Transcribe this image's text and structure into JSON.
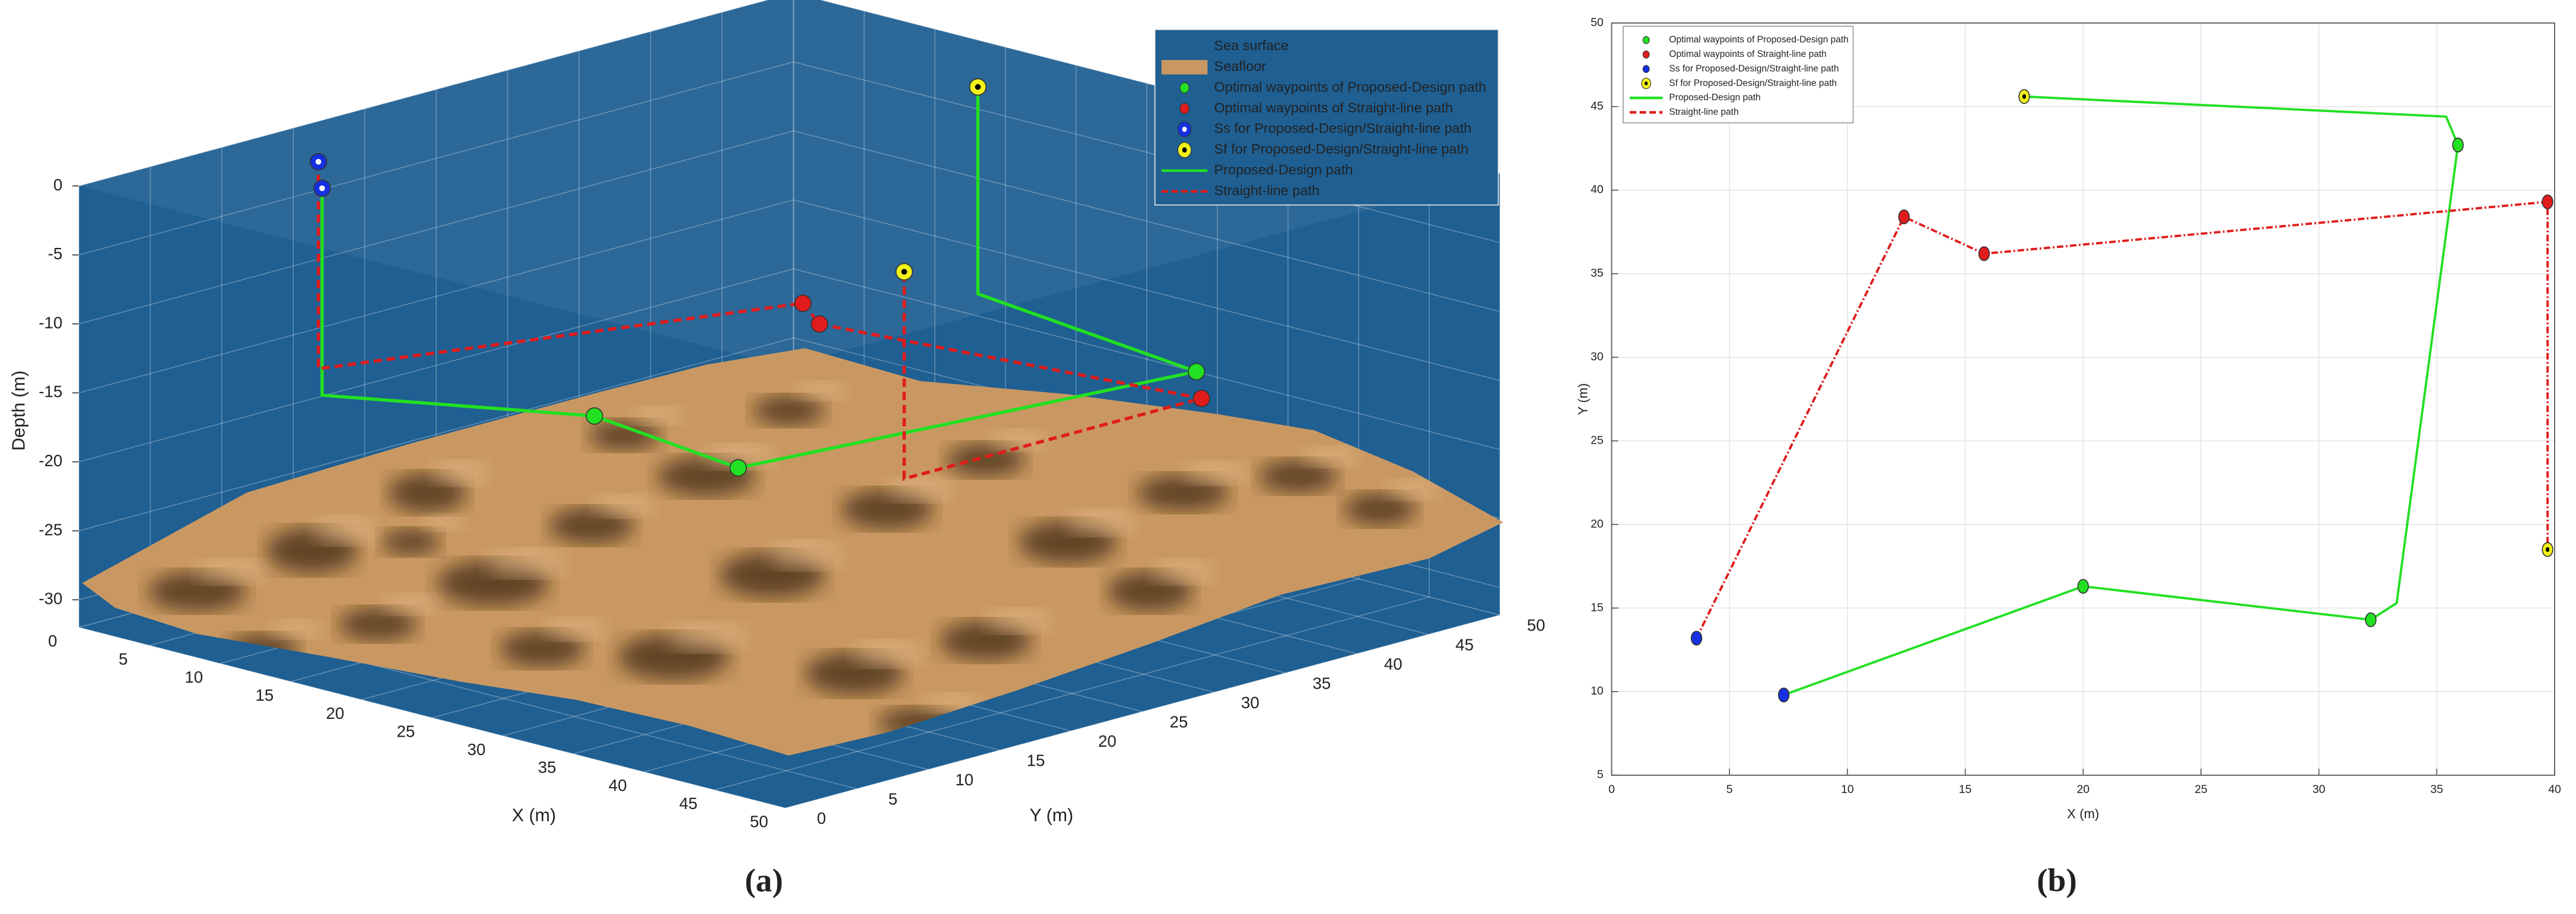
{
  "chart_data": [
    {
      "type": "line3d",
      "caption": "(a)",
      "xlabel": "X (m)",
      "ylabel": "Y (m)",
      "zlabel": "Depth (m)",
      "xlim": [
        0,
        50
      ],
      "ylim": [
        0,
        50
      ],
      "zlim": [
        -32,
        0
      ],
      "xticks": [
        0,
        5,
        10,
        15,
        20,
        25,
        30,
        35,
        40,
        45,
        50
      ],
      "yticks": [
        0,
        5,
        10,
        15,
        20,
        25,
        30,
        35,
        40,
        45,
        50
      ],
      "zticks": [
        0,
        -5,
        -10,
        -15,
        -20,
        -25,
        -30
      ],
      "grid": true,
      "legend": "upper right",
      "surfaces": [
        {
          "name": "Sea surface",
          "color": "#1f5f92"
        },
        {
          "name": "Seafloor",
          "color": "#c99862"
        }
      ],
      "series": [
        {
          "name": "Optimal waypoints of Proposed-Design path",
          "mode": "marker",
          "color": "#22e022",
          "x": [
            20,
            32.2,
            35.9
          ],
          "y": [
            16.3,
            14.3,
            42.7
          ],
          "z": [
            -16,
            -16,
            -16
          ]
        },
        {
          "name": "Optimal waypoints of Straight-line path",
          "mode": "marker",
          "color": "#e01c1c",
          "x": [
            12.4,
            15.8,
            39.7
          ],
          "y": [
            38.4,
            36.2,
            39.3
          ],
          "z": [
            -16,
            -16,
            -16
          ]
        },
        {
          "name": "Ss for Proposed-Design/Straight-line path",
          "mode": "marker",
          "color": "#1530e0",
          "marker_center": "#ffffff",
          "x": [
            7.3,
            3.6
          ],
          "y": [
            9.8,
            13.2
          ],
          "z": [
            -1,
            -1
          ]
        },
        {
          "name": "Sf for Proposed-Design/Straight-line path",
          "mode": "marker",
          "color": "#f2f21a",
          "marker_center": "#000000",
          "x": [
            17.5,
            39.7
          ],
          "y": [
            45.6,
            18.5
          ],
          "z": [
            -1,
            -1
          ]
        },
        {
          "name": "Proposed-Design path",
          "mode": "line",
          "color": "#22e022",
          "dash": false,
          "x": [
            7.3,
            7.3,
            20,
            32.2,
            35.9,
            17.5,
            17.5
          ],
          "y": [
            9.8,
            9.8,
            16.3,
            14.3,
            42.7,
            45.6,
            45.6
          ],
          "z": [
            -1,
            -16,
            -16,
            -16,
            -16,
            -16,
            -1
          ]
        },
        {
          "name": "Straight-line path",
          "mode": "line",
          "color": "#e01c1c",
          "dash": true,
          "x": [
            3.6,
            3.6,
            12.4,
            15.8,
            39.7,
            39.7,
            39.7
          ],
          "y": [
            13.2,
            13.2,
            38.4,
            36.2,
            39.3,
            18.5,
            18.5
          ],
          "z": [
            -1,
            -16,
            -16,
            -16,
            -16,
            -16,
            -1
          ]
        }
      ]
    },
    {
      "type": "line",
      "caption": "(b)",
      "xlabel": "X (m)",
      "ylabel": "Y (m)",
      "xlim": [
        0,
        40
      ],
      "ylim": [
        5,
        50
      ],
      "xticks": [
        0,
        5,
        10,
        15,
        20,
        25,
        30,
        35,
        40
      ],
      "yticks": [
        5,
        10,
        15,
        20,
        25,
        30,
        35,
        40,
        45,
        50
      ],
      "grid": true,
      "legend": "upper left",
      "series": [
        {
          "name": "Optimal waypoints of Proposed-Design path",
          "mode": "marker",
          "color": "#22e022",
          "x": [
            20,
            32.2,
            35.9
          ],
          "y": [
            16.3,
            14.3,
            42.7
          ]
        },
        {
          "name": "Optimal waypoints of Straight-line path",
          "mode": "marker",
          "color": "#e01c1c",
          "x": [
            12.4,
            15.8,
            39.7
          ],
          "y": [
            38.4,
            36.2,
            39.3
          ]
        },
        {
          "name": "Ss for Proposed-Design/Straight-line path",
          "mode": "marker",
          "color": "#1530e0",
          "x": [
            7.3,
            3.6
          ],
          "y": [
            9.8,
            13.2
          ]
        },
        {
          "name": "Sf for Proposed-Design/Straight-line path",
          "mode": "marker",
          "color": "#f2f21a",
          "marker_center": "#000000",
          "x": [
            17.5,
            39.7
          ],
          "y": [
            45.6,
            18.5
          ]
        },
        {
          "name": "Proposed-Design path",
          "mode": "line",
          "color": "#22e022",
          "dash": false,
          "x": [
            7.3,
            20,
            32.2,
            33.3,
            35.9,
            35.4,
            17.5
          ],
          "y": [
            9.8,
            16.3,
            14.3,
            15.3,
            42.7,
            44.4,
            45.6
          ]
        },
        {
          "name": "Straight-line path",
          "mode": "line",
          "color": "#e01c1c",
          "dash": true,
          "x": [
            3.6,
            12.4,
            15.8,
            39.7,
            39.7
          ],
          "y": [
            13.2,
            38.4,
            36.2,
            39.3,
            18.5
          ]
        }
      ]
    }
  ]
}
